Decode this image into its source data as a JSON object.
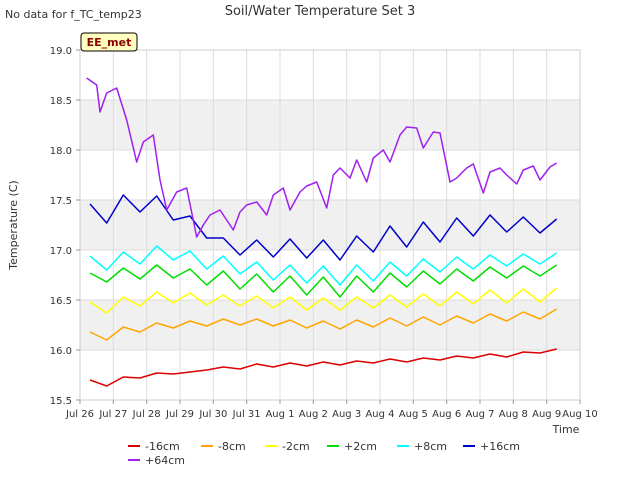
{
  "header": {
    "nodata_note": "No data for f_TC_temp23",
    "site_badge": "EE_met"
  },
  "colors": {
    "band": "#f0f0f0",
    "grid": "#dcdcdc",
    "badge_bg": "#ffffc0",
    "badge_text": "#8b0000"
  },
  "chart_data": {
    "type": "line",
    "title": "Soil/Water Temperature Set 3",
    "xlabel": "Time",
    "ylabel": "Temperature (C)",
    "xlim": [
      0,
      15
    ],
    "ylim": [
      15.5,
      19.0
    ],
    "grid": true,
    "legend_position": "bottom",
    "xticks": [
      {
        "v": 0,
        "label": "Jul 26"
      },
      {
        "v": 1,
        "label": "Jul 27"
      },
      {
        "v": 2,
        "label": "Jul 28"
      },
      {
        "v": 3,
        "label": "Jul 29"
      },
      {
        "v": 4,
        "label": "Jul 30"
      },
      {
        "v": 5,
        "label": "Jul 31"
      },
      {
        "v": 6,
        "label": "Aug 1"
      },
      {
        "v": 7,
        "label": "Aug 2"
      },
      {
        "v": 8,
        "label": "Aug 3"
      },
      {
        "v": 9,
        "label": "Aug 4"
      },
      {
        "v": 10,
        "label": "Aug 5"
      },
      {
        "v": 11,
        "label": "Aug 6"
      },
      {
        "v": 12,
        "label": "Aug 7"
      },
      {
        "v": 13,
        "label": "Aug 8"
      },
      {
        "v": 14,
        "label": "Aug 9"
      },
      {
        "v": 15,
        "label": "Aug 10"
      }
    ],
    "yticks": [
      15.5,
      16.0,
      16.5,
      17.0,
      17.5,
      18.0,
      18.5,
      19.0
    ],
    "series": [
      {
        "name": "-16cm",
        "color": "#dd0000",
        "x": [
          0.3,
          0.8,
          1.3,
          1.8,
          2.3,
          2.8,
          3.3,
          3.8,
          4.3,
          4.8,
          5.3,
          5.8,
          6.3,
          6.8,
          7.3,
          7.8,
          8.3,
          8.8,
          9.3,
          9.8,
          10.3,
          10.8,
          11.3,
          11.8,
          12.3,
          12.8,
          13.3,
          13.8,
          14.3
        ],
        "y": [
          15.7,
          15.64,
          15.73,
          15.72,
          15.77,
          15.76,
          15.78,
          15.8,
          15.83,
          15.81,
          15.86,
          15.83,
          15.87,
          15.84,
          15.88,
          15.85,
          15.89,
          15.87,
          15.91,
          15.88,
          15.92,
          15.9,
          15.94,
          15.92,
          15.96,
          15.93,
          15.98,
          15.97,
          16.01
        ]
      },
      {
        "name": "-8cm",
        "color": "#ffa500",
        "x": [
          0.3,
          0.8,
          1.3,
          1.8,
          2.3,
          2.8,
          3.3,
          3.8,
          4.3,
          4.8,
          5.3,
          5.8,
          6.3,
          6.8,
          7.3,
          7.8,
          8.3,
          8.8,
          9.3,
          9.8,
          10.3,
          10.8,
          11.3,
          11.8,
          12.3,
          12.8,
          13.3,
          13.8,
          14.3
        ],
        "y": [
          16.18,
          16.1,
          16.23,
          16.18,
          16.27,
          16.22,
          16.29,
          16.24,
          16.31,
          16.25,
          16.31,
          16.24,
          16.3,
          16.22,
          16.29,
          16.21,
          16.3,
          16.23,
          16.32,
          16.24,
          16.33,
          16.25,
          16.34,
          16.27,
          16.36,
          16.29,
          16.38,
          16.31,
          16.41
        ]
      },
      {
        "name": "-2cm",
        "color": "#ffff00",
        "x": [
          0.3,
          0.8,
          1.3,
          1.8,
          2.3,
          2.8,
          3.3,
          3.8,
          4.3,
          4.8,
          5.3,
          5.8,
          6.3,
          6.8,
          7.3,
          7.8,
          8.3,
          8.8,
          9.3,
          9.8,
          10.3,
          10.8,
          11.3,
          11.8,
          12.3,
          12.8,
          13.3,
          13.8,
          14.3
        ],
        "y": [
          16.48,
          16.37,
          16.53,
          16.44,
          16.58,
          16.47,
          16.57,
          16.45,
          16.55,
          16.44,
          16.54,
          16.42,
          16.53,
          16.4,
          16.52,
          16.4,
          16.53,
          16.42,
          16.55,
          16.43,
          16.56,
          16.44,
          16.58,
          16.46,
          16.6,
          16.47,
          16.61,
          16.48,
          16.62
        ]
      },
      {
        "name": "+2cm",
        "color": "#00dd00",
        "x": [
          0.3,
          0.8,
          1.3,
          1.8,
          2.3,
          2.8,
          3.3,
          3.8,
          4.3,
          4.8,
          5.3,
          5.8,
          6.3,
          6.8,
          7.3,
          7.8,
          8.3,
          8.8,
          9.3,
          9.8,
          10.3,
          10.8,
          11.3,
          11.8,
          12.3,
          12.8,
          13.3,
          13.8,
          14.3
        ],
        "y": [
          16.77,
          16.68,
          16.82,
          16.71,
          16.85,
          16.72,
          16.81,
          16.65,
          16.79,
          16.61,
          16.76,
          16.58,
          16.74,
          16.55,
          16.73,
          16.53,
          16.74,
          16.58,
          16.77,
          16.63,
          16.79,
          16.66,
          16.81,
          16.69,
          16.83,
          16.72,
          16.84,
          16.74,
          16.85
        ]
      },
      {
        "name": "+8cm",
        "color": "#00ffff",
        "x": [
          0.3,
          0.8,
          1.3,
          1.8,
          2.3,
          2.8,
          3.3,
          3.8,
          4.3,
          4.8,
          5.3,
          5.8,
          6.3,
          6.8,
          7.3,
          7.8,
          8.3,
          8.8,
          9.3,
          9.8,
          10.3,
          10.8,
          11.3,
          11.8,
          12.3,
          12.8,
          13.3,
          13.8,
          14.3
        ],
        "y": [
          16.94,
          16.8,
          16.98,
          16.86,
          17.04,
          16.9,
          16.99,
          16.81,
          16.94,
          16.76,
          16.88,
          16.7,
          16.85,
          16.67,
          16.84,
          16.65,
          16.85,
          16.69,
          16.88,
          16.74,
          16.91,
          16.78,
          16.93,
          16.81,
          16.95,
          16.84,
          16.96,
          16.86,
          16.97
        ]
      },
      {
        "name": "+16cm",
        "color": "#0000cc",
        "x": [
          0.3,
          0.8,
          1.3,
          1.8,
          2.3,
          2.8,
          3.3,
          3.8,
          4.3,
          4.8,
          5.3,
          5.8,
          6.3,
          6.8,
          7.3,
          7.8,
          8.3,
          8.8,
          9.3,
          9.8,
          10.3,
          10.8,
          11.3,
          11.8,
          12.3,
          12.8,
          13.3,
          13.8,
          14.3
        ],
        "y": [
          17.46,
          17.27,
          17.55,
          17.38,
          17.54,
          17.3,
          17.34,
          17.12,
          17.12,
          16.95,
          17.1,
          16.93,
          17.11,
          16.92,
          17.1,
          16.9,
          17.14,
          16.98,
          17.24,
          17.03,
          17.28,
          17.08,
          17.32,
          17.14,
          17.35,
          17.18,
          17.33,
          17.17,
          17.31
        ]
      },
      {
        "name": "+64cm",
        "color": "#a020f0",
        "x": [
          0.2,
          0.5,
          0.6,
          0.8,
          1.1,
          1.4,
          1.7,
          1.9,
          2.2,
          2.4,
          2.6,
          2.9,
          3.2,
          3.5,
          3.7,
          3.9,
          4.2,
          4.6,
          4.8,
          5.0,
          5.3,
          5.6,
          5.8,
          6.1,
          6.3,
          6.6,
          6.8,
          7.1,
          7.4,
          7.6,
          7.8,
          8.1,
          8.3,
          8.6,
          8.8,
          9.1,
          9.3,
          9.6,
          9.8,
          10.1,
          10.3,
          10.6,
          10.8,
          11.1,
          11.3,
          11.6,
          11.8,
          12.1,
          12.3,
          12.6,
          12.8,
          13.1,
          13.3,
          13.6,
          13.8,
          14.1,
          14.3
        ],
        "y": [
          18.72,
          18.65,
          18.38,
          18.57,
          18.62,
          18.3,
          17.88,
          18.08,
          18.15,
          17.7,
          17.4,
          17.58,
          17.62,
          17.13,
          17.25,
          17.35,
          17.4,
          17.2,
          17.38,
          17.45,
          17.48,
          17.35,
          17.55,
          17.62,
          17.4,
          17.58,
          17.64,
          17.68,
          17.42,
          17.75,
          17.82,
          17.72,
          17.9,
          17.68,
          17.92,
          18.0,
          17.88,
          18.15,
          18.23,
          18.22,
          18.02,
          18.18,
          18.17,
          17.68,
          17.72,
          17.82,
          17.86,
          17.57,
          17.78,
          17.82,
          17.75,
          17.66,
          17.8,
          17.84,
          17.7,
          17.83,
          17.87
        ]
      }
    ]
  }
}
